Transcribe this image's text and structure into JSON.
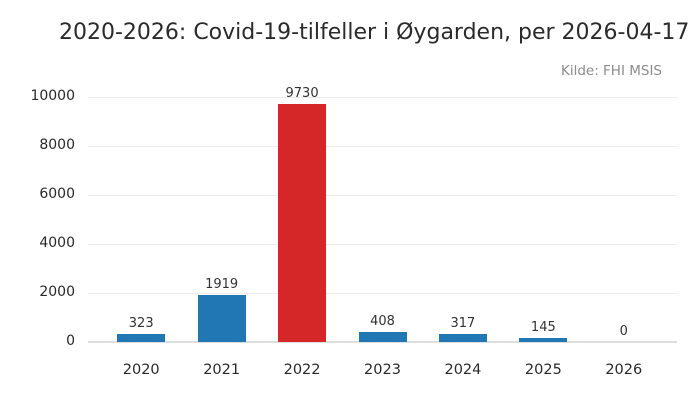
{
  "title": "2020-2026: Covid-19-tilfeller i Øygarden, per 2026-04-17",
  "source": "Kilde: FHI MSIS",
  "chart_data": {
    "type": "bar",
    "title": "2020-2026: Covid-19-tilfeller i Øygarden, per 2026-04-17",
    "subtitle": "Kilde: FHI MSIS",
    "categories": [
      "2020",
      "2021",
      "2022",
      "2023",
      "2024",
      "2025",
      "2026"
    ],
    "values": [
      323,
      1919,
      9730,
      408,
      317,
      145,
      0
    ],
    "bar_colors": [
      "#2077b4",
      "#2077b4",
      "#d62728",
      "#2077b4",
      "#2077b4",
      "#2077b4",
      "#2077b4"
    ],
    "highlight_index": 2,
    "xlabel": "",
    "ylabel": "",
    "ylim": [
      0,
      10000
    ],
    "yticks": [
      0,
      2000,
      4000,
      6000,
      8000,
      10000
    ],
    "grid": "horizontal",
    "legend": "none",
    "value_labels": true,
    "colors": {
      "bar": "#2077b4",
      "highlight": "#d62728",
      "grid": "#ececec",
      "baseline": "#dedede",
      "text": "#2a2a2a",
      "muted": "#8c8c8c",
      "background": "#ffffff"
    }
  }
}
